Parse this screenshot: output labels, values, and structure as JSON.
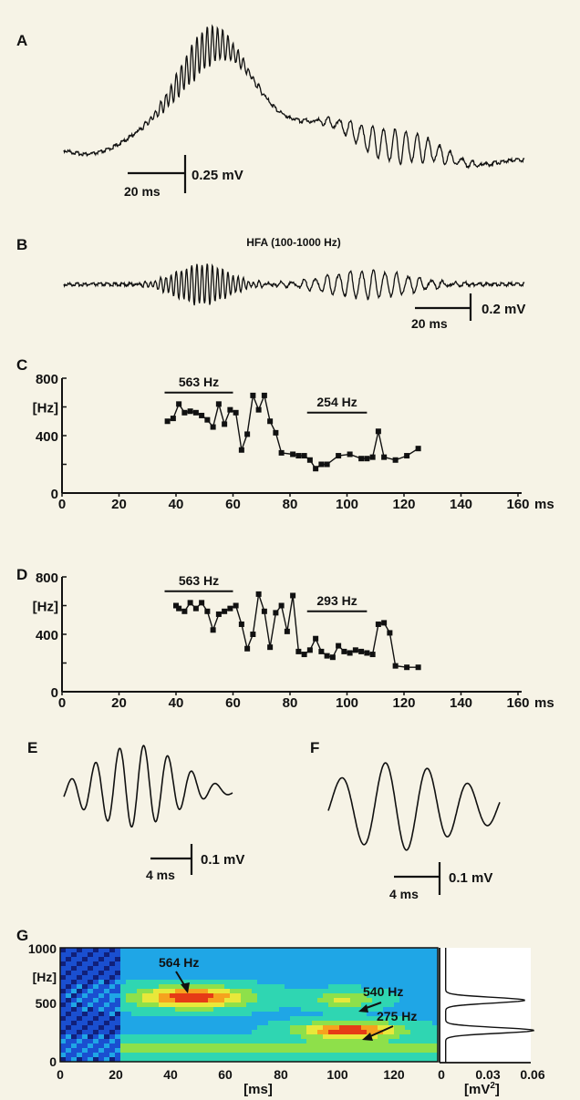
{
  "panels": {
    "a": "A",
    "b": "B",
    "c": "C",
    "d": "D",
    "e": "E",
    "f": "F",
    "g": "G"
  },
  "panel_a": {
    "time_scale": "20 ms",
    "amp_scale": "0.25 mV"
  },
  "panel_b": {
    "title": "HFA (100-1000 Hz)",
    "time_scale": "20 ms",
    "amp_scale": "0.2 mV"
  },
  "panel_e": {
    "time_scale": "4 ms",
    "amp_scale": "0.1 mV"
  },
  "panel_f": {
    "time_scale": "4 ms",
    "amp_scale": "0.1 mV"
  },
  "panel_g": {
    "y_ticks": [
      "1000",
      "[Hz]",
      "500",
      "0"
    ],
    "x_ticks": [
      "0",
      "20",
      "40",
      "60",
      "80",
      "100",
      "120"
    ],
    "x_label": "[ms]",
    "side_ticks": [
      "0",
      "0.03",
      "0.06"
    ],
    "side_label": "[mV",
    "side_label_sup": "2",
    "side_label_end": "]",
    "annotations": {
      "a1": "564 Hz",
      "a2": "540 Hz",
      "a3": "275 Hz"
    },
    "colors": [
      "#10207a",
      "#1a4fd0",
      "#1fa6e6",
      "#2fd6b2",
      "#8ee04a",
      "#e8e83a",
      "#f6a21e",
      "#e63b16",
      "#c41412"
    ]
  },
  "chart_data": [
    {
      "type": "line",
      "panel": "C",
      "y_tick_labels": [
        "800",
        "[Hz]",
        "400",
        "0"
      ],
      "x_tick_labels": [
        "0",
        "20",
        "40",
        "60",
        "80",
        "100",
        "120",
        "140",
        "160"
      ],
      "x_unit": "ms",
      "xlim": [
        0,
        160
      ],
      "ylim": [
        0,
        800
      ],
      "annotations": [
        {
          "text": "563 Hz",
          "x_start": 36,
          "x_end": 60,
          "y": 700
        },
        {
          "text": "254 Hz",
          "x_start": 86,
          "x_end": 107,
          "y": 560
        }
      ],
      "x": [
        37,
        39,
        41,
        43,
        45,
        47,
        49,
        51,
        53,
        55,
        57,
        59,
        61,
        63,
        65,
        67,
        69,
        71,
        73,
        75,
        77,
        81,
        83,
        85,
        87,
        89,
        91,
        93,
        97,
        101,
        105,
        107,
        109,
        111,
        113,
        117,
        121,
        125
      ],
      "y": [
        500,
        520,
        620,
        560,
        570,
        560,
        540,
        510,
        460,
        620,
        480,
        580,
        560,
        300,
        410,
        680,
        580,
        680,
        500,
        420,
        280,
        270,
        260,
        260,
        230,
        170,
        200,
        200,
        260,
        270,
        240,
        240,
        250,
        430,
        250,
        230,
        260,
        310
      ]
    },
    {
      "type": "line",
      "panel": "D",
      "y_tick_labels": [
        "800",
        "[Hz]",
        "400",
        "0"
      ],
      "x_tick_labels": [
        "0",
        "20",
        "40",
        "60",
        "80",
        "100",
        "120",
        "140",
        "160"
      ],
      "x_unit": "ms",
      "xlim": [
        0,
        160
      ],
      "ylim": [
        0,
        800
      ],
      "annotations": [
        {
          "text": "563 Hz",
          "x_start": 36,
          "x_end": 60,
          "y": 700
        },
        {
          "text": "293 Hz",
          "x_start": 86,
          "x_end": 107,
          "y": 560
        }
      ],
      "x": [
        40,
        41,
        43,
        45,
        47,
        49,
        51,
        53,
        55,
        57,
        59,
        61,
        63,
        65,
        67,
        69,
        71,
        73,
        75,
        77,
        79,
        81,
        83,
        85,
        87,
        89,
        91,
        93,
        95,
        97,
        99,
        101,
        103,
        105,
        107,
        109,
        111,
        113,
        115,
        117,
        121,
        125
      ],
      "y": [
        600,
        580,
        560,
        620,
        580,
        620,
        560,
        430,
        540,
        560,
        580,
        600,
        470,
        300,
        400,
        680,
        560,
        310,
        550,
        600,
        420,
        670,
        280,
        260,
        290,
        370,
        280,
        250,
        240,
        320,
        280,
        270,
        290,
        280,
        270,
        260,
        470,
        480,
        410,
        180,
        170,
        170
      ]
    }
  ]
}
